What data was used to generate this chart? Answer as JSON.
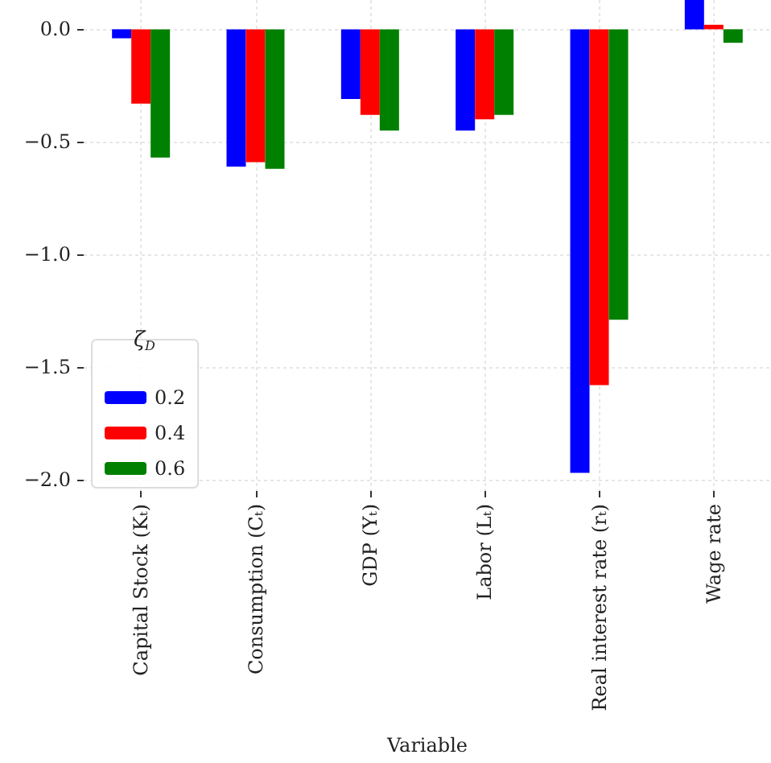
{
  "chart_data": {
    "type": "bar",
    "xlabel": "Variable",
    "legend_title": "ζ$_{D}$",
    "categories": [
      "Capital Stock (Kₜ)",
      "Consumption (Cₜ)",
      "GDP (Yₜ)",
      "Labor (Lₜ)",
      "Real interest rate (rₜ)",
      "Wage rate"
    ],
    "series": [
      {
        "name": "0.2",
        "color": "#0000ff",
        "values": [
          -0.04,
          -0.61,
          -0.31,
          -0.45,
          -1.97,
          0.13
        ]
      },
      {
        "name": "0.4",
        "color": "#ff0000",
        "values": [
          -0.33,
          -0.59,
          -0.38,
          -0.4,
          -1.58,
          0.02
        ]
      },
      {
        "name": "0.6",
        "color": "#008000",
        "values": [
          -0.57,
          -0.62,
          -0.45,
          -0.38,
          -1.29,
          -0.06
        ]
      }
    ],
    "ylim": [
      -2.05,
      0.13
    ],
    "yticks": [
      {
        "value": 0,
        "label": "0.0"
      },
      -0.5,
      {
        "value": -1,
        "label": "−1.0"
      },
      -1.5,
      {
        "value": -2,
        "label": "−2.0"
      }
    ],
    "grid": true,
    "legend": "bottom left"
  }
}
